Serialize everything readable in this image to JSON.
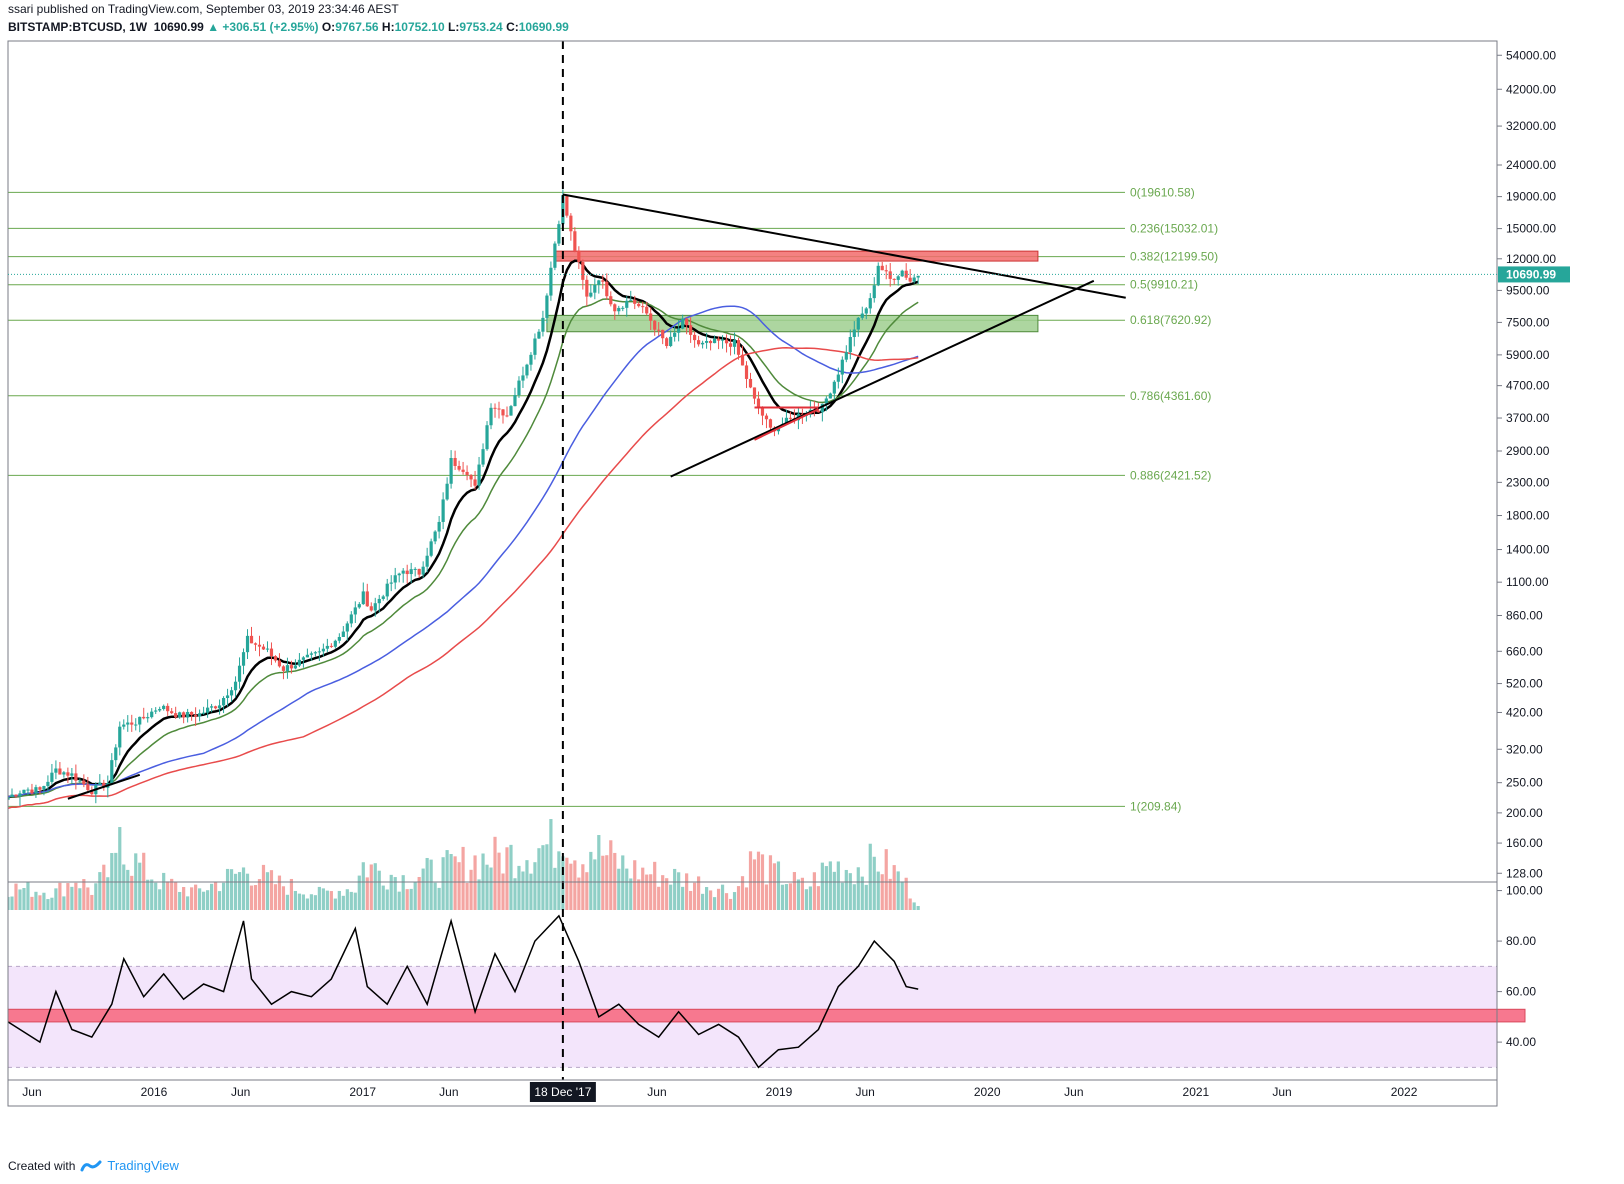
{
  "header": {
    "line1": "ssari published on TradingView.com, September 03, 2019 23:34:46 AEST",
    "symbol": "BITSTAMP:BTCUSD, 1W",
    "last": "10690.99",
    "change": "+306.51 (+2.95%)",
    "o_label": "O:",
    "o_value": "9767.56",
    "h_label": "H:",
    "h_value": "10752.10",
    "l_label": "L:",
    "l_value": "9753.24",
    "c_label": "C:",
    "c_value": "10690.99"
  },
  "footer": {
    "created": "Created with",
    "brand": "TradingView"
  },
  "colors": {
    "up": "#26a69a",
    "down": "#ef5350",
    "volume_up": "#8fcfc6",
    "volume_down": "#f4a5a2",
    "ma_black": "#000000",
    "ma_green": "#4f8a3b",
    "ma_blue": "#4a5ee0",
    "ma_red": "#e84b4b",
    "fib_line": "#6aa84f",
    "fib_text": "#6aa84f",
    "rsi_band": "#f3e5fb",
    "rsi_zone": "#f7788f",
    "resistance_box": "#f26b6b",
    "support_box": "#9fcf8f",
    "price_tag": "#26a69a"
  },
  "chart_data": [
    {
      "type": "candlestick",
      "title": "",
      "symbol": "BITSTAMP:BTCUSD",
      "interval": "1W",
      "y_scale": "log",
      "ylim": [
        120,
        60000
      ],
      "price_axis_ticks": [
        "54000.00",
        "42000.00",
        "32000.00",
        "24000.00",
        "19000.00",
        "15000.00",
        "12000.00",
        "9500.00",
        "7500.00",
        "5900.00",
        "4700.00",
        "3700.00",
        "2900.00",
        "2300.00",
        "1800.00",
        "1400.00",
        "1100.00",
        "860.00",
        "660.00",
        "520.00",
        "420.00",
        "320.00",
        "250.00",
        "200.00",
        "160.00",
        "128.00"
      ],
      "time_axis_labels": [
        "Jun",
        "2016",
        "Jun",
        "2017",
        "Jun",
        "18 Dec '17",
        "Jun",
        "2019",
        "Jun",
        "2020",
        "Jun",
        "2021",
        "Jun",
        "2022"
      ],
      "time_axis_values": [
        "2015-06",
        "2016-01",
        "2016-06",
        "2017-01",
        "2017-06",
        "2017-12-18",
        "2018-06",
        "2019-01",
        "2019-06",
        "2020-01",
        "2020-06",
        "2021-01",
        "2021-06",
        "2022-01"
      ],
      "xlim": [
        "2015-04-20",
        "2022-06-13"
      ],
      "last_price": {
        "value": 10690.99,
        "label": "10690.99"
      },
      "vertical_marker": {
        "date": "2017-12-18",
        "style": "dashed"
      },
      "fibonacci": [
        {
          "label": "0(19610.58)",
          "value": 19610.58
        },
        {
          "label": "0.236(15032.01)",
          "value": 15032.01
        },
        {
          "label": "0.382(12199.50)",
          "value": 12199.5
        },
        {
          "label": "0.5(9910.21)",
          "value": 9910.21
        },
        {
          "label": "0.618(7620.92)",
          "value": 7620.92
        },
        {
          "label": "0.786(4361.60)",
          "value": 4361.6
        },
        {
          "label": "0.886(2421.52)",
          "value": 2421.52
        },
        {
          "label": "1(209.84)",
          "value": 209.84
        }
      ],
      "zones": [
        {
          "kind": "resistance",
          "from": "2017-12-04",
          "to": "2020-03-30",
          "low": 11800,
          "high": 12700
        },
        {
          "kind": "support",
          "from": "2017-11-20",
          "to": "2020-03-30",
          "low": 7000,
          "high": 7900
        }
      ],
      "trendlines": [
        {
          "from": [
            "2017-12-18",
            19300
          ],
          "to": [
            "2020-08-31",
            9000
          ],
          "color": "black"
        },
        {
          "from": [
            "2018-06-25",
            2400
          ],
          "to": [
            "2020-07-06",
            10200
          ],
          "color": "black"
        },
        {
          "from": [
            "2015-08-03",
            222
          ],
          "to": [
            "2015-12-07",
            265
          ],
          "color": "black"
        },
        {
          "from": [
            "2018-11-19",
            3150
          ],
          "to": [
            "2019-03-11",
            3950
          ],
          "color": "red"
        },
        {
          "from": [
            "2018-11-19",
            4000
          ],
          "to": [
            "2019-03-11",
            4000
          ],
          "color": "red"
        }
      ],
      "price_series": [
        [
          "2015-04-20",
          225
        ],
        [
          "2015-05-18",
          238
        ],
        [
          "2015-06-15",
          236
        ],
        [
          "2015-07-13",
          275
        ],
        [
          "2015-08-10",
          265
        ],
        [
          "2015-09-14",
          236
        ],
        [
          "2015-10-12",
          250
        ],
        [
          "2015-11-02",
          380
        ],
        [
          "2015-12-07",
          395
        ],
        [
          "2016-01-11",
          440
        ],
        [
          "2016-02-15",
          410
        ],
        [
          "2016-03-21",
          415
        ],
        [
          "2016-04-25",
          450
        ],
        [
          "2016-05-23",
          530
        ],
        [
          "2016-06-13",
          720
        ],
        [
          "2016-07-18",
          660
        ],
        [
          "2016-08-15",
          580
        ],
        [
          "2016-09-12",
          610
        ],
        [
          "2016-10-17",
          650
        ],
        [
          "2016-11-21",
          740
        ],
        [
          "2016-12-19",
          900
        ],
        [
          "2017-01-02",
          1000
        ],
        [
          "2017-01-16",
          900
        ],
        [
          "2017-02-20",
          1100
        ],
        [
          "2017-03-13",
          1200
        ],
        [
          "2017-04-10",
          1180
        ],
        [
          "2017-05-15",
          1700
        ],
        [
          "2017-06-05",
          2700
        ],
        [
          "2017-07-03",
          2500
        ],
        [
          "2017-07-17",
          2200
        ],
        [
          "2017-08-14",
          4100
        ],
        [
          "2017-09-11",
          3800
        ],
        [
          "2017-10-16",
          5600
        ],
        [
          "2017-11-13",
          7800
        ],
        [
          "2017-12-04",
          13500
        ],
        [
          "2017-12-18",
          18900
        ],
        [
          "2018-01-01",
          14500
        ],
        [
          "2018-01-29",
          9000
        ],
        [
          "2018-02-19",
          10500
        ],
        [
          "2018-03-19",
          8300
        ],
        [
          "2018-04-16",
          8900
        ],
        [
          "2018-05-14",
          8000
        ],
        [
          "2018-06-18",
          6300
        ],
        [
          "2018-07-16",
          7500
        ],
        [
          "2018-08-13",
          6300
        ],
        [
          "2018-09-17",
          6500
        ],
        [
          "2018-10-15",
          6400
        ],
        [
          "2018-11-19",
          4200
        ],
        [
          "2018-12-17",
          3400
        ],
        [
          "2019-01-14",
          3600
        ],
        [
          "2019-02-18",
          3900
        ],
        [
          "2019-03-18",
          4000
        ],
        [
          "2019-04-15",
          5200
        ],
        [
          "2019-05-13",
          7200
        ],
        [
          "2019-06-10",
          8800
        ],
        [
          "2019-06-24",
          11500
        ],
        [
          "2019-07-15",
          10300
        ],
        [
          "2019-08-05",
          11000
        ],
        [
          "2019-08-19",
          10200
        ],
        [
          "2019-09-02",
          10690.99
        ]
      ],
      "volume_scale": "relative",
      "volume_series": [
        [
          "2015-04-20",
          0.25
        ],
        [
          "2015-07-13",
          0.2
        ],
        [
          "2015-08-17",
          0.35
        ],
        [
          "2015-09-14",
          0.22
        ],
        [
          "2015-10-26",
          0.5
        ],
        [
          "2015-11-02",
          1.0
        ],
        [
          "2015-11-16",
          0.6
        ],
        [
          "2015-12-14",
          0.45
        ],
        [
          "2016-01-18",
          0.3
        ],
        [
          "2016-03-14",
          0.2
        ],
        [
          "2016-06-13",
          0.45
        ],
        [
          "2016-08-01",
          0.3
        ],
        [
          "2016-10-17",
          0.18
        ],
        [
          "2016-12-19",
          0.25
        ],
        [
          "2017-01-02",
          0.5
        ],
        [
          "2017-03-13",
          0.35
        ],
        [
          "2017-05-22",
          0.45
        ],
        [
          "2017-07-17",
          0.55
        ],
        [
          "2017-09-11",
          0.6
        ],
        [
          "2017-11-13",
          0.7
        ],
        [
          "2017-12-11",
          0.75
        ],
        [
          "2017-12-18",
          0.95
        ],
        [
          "2018-01-15",
          0.55
        ],
        [
          "2018-02-05",
          0.7
        ],
        [
          "2018-04-16",
          0.45
        ],
        [
          "2018-07-16",
          0.35
        ],
        [
          "2018-10-15",
          0.2
        ],
        [
          "2018-11-19",
          0.6
        ],
        [
          "2018-12-10",
          0.45
        ],
        [
          "2019-02-18",
          0.25
        ],
        [
          "2019-04-01",
          0.5
        ],
        [
          "2019-05-13",
          0.45
        ],
        [
          "2019-06-24",
          0.55
        ],
        [
          "2019-08-05",
          0.35
        ],
        [
          "2019-09-02",
          0.05
        ]
      ]
    },
    {
      "type": "line",
      "title": "",
      "indicator": "RSI",
      "ylim": [
        25,
        103
      ],
      "y_ticks": [
        "100.00",
        "80.00",
        "60.00",
        "40.00"
      ],
      "band": [
        30,
        70
      ],
      "zone": [
        48,
        53
      ],
      "x": [
        "2015-04-20",
        "2015-06-15",
        "2015-07-13",
        "2015-08-10",
        "2015-09-14",
        "2015-10-19",
        "2015-11-09",
        "2015-12-14",
        "2016-01-18",
        "2016-02-22",
        "2016-03-28",
        "2016-05-02",
        "2016-06-06",
        "2016-06-20",
        "2016-07-25",
        "2016-08-29",
        "2016-10-03",
        "2016-11-07",
        "2016-12-19",
        "2017-01-09",
        "2017-02-13",
        "2017-03-20",
        "2017-04-24",
        "2017-06-05",
        "2017-07-17",
        "2017-08-21",
        "2017-09-25",
        "2017-10-30",
        "2017-12-11",
        "2018-01-15",
        "2018-02-19",
        "2018-03-26",
        "2018-04-30",
        "2018-06-04",
        "2018-07-09",
        "2018-08-13",
        "2018-09-17",
        "2018-10-22",
        "2018-11-26",
        "2018-12-31",
        "2019-02-04",
        "2019-03-11",
        "2019-04-15",
        "2019-05-20",
        "2019-06-17",
        "2019-07-22",
        "2019-08-12",
        "2019-09-02"
      ],
      "y": [
        48,
        40,
        60,
        45,
        42,
        55,
        73,
        58,
        67,
        57,
        63,
        60,
        88,
        65,
        55,
        60,
        58,
        65,
        85,
        62,
        55,
        70,
        55,
        88,
        52,
        75,
        60,
        80,
        90,
        72,
        50,
        55,
        47,
        42,
        52,
        43,
        47,
        42,
        30,
        37,
        38,
        45,
        62,
        70,
        80,
        72,
        62,
        61
      ]
    }
  ]
}
